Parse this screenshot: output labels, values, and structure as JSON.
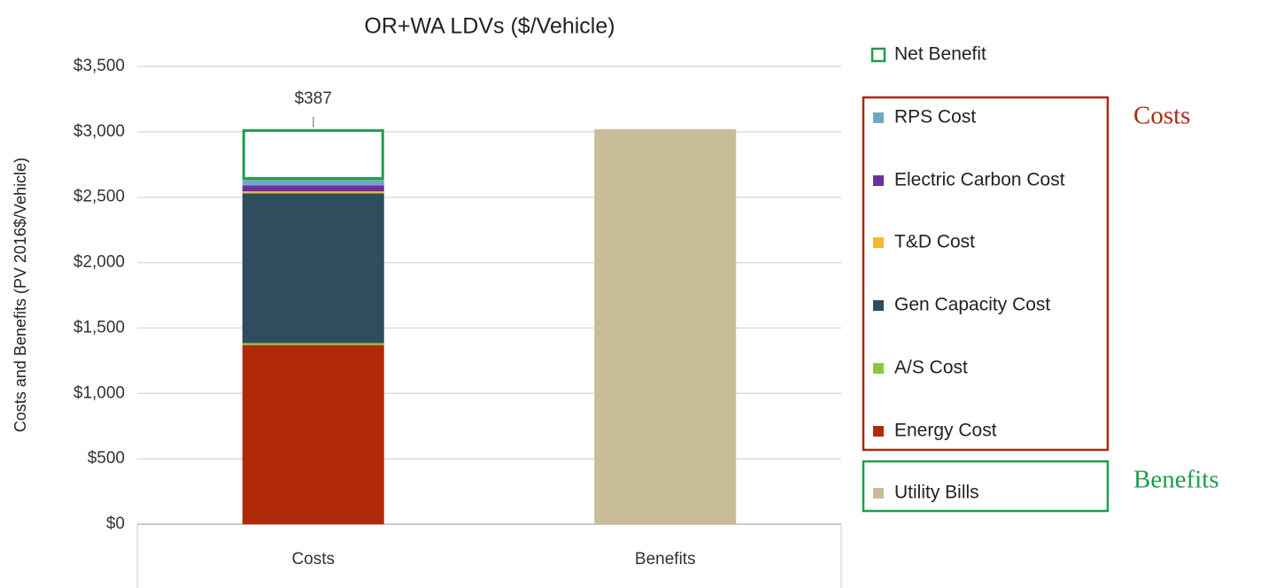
{
  "chart_data": {
    "type": "stacked-bar",
    "title": "OR+WA LDVs ($/Vehicle)",
    "y_label": "Costs and Benefits (PV 2016$/Vehicle)",
    "categories": [
      "Costs",
      "Benefits"
    ],
    "series": [
      {
        "name": "Energy Cost",
        "color": "#b02a0a",
        "values": [
          1370,
          null
        ]
      },
      {
        "name": "A/S Cost",
        "color": "#8cc63f",
        "values": [
          15,
          null
        ]
      },
      {
        "name": "Gen Capacity Cost",
        "color": "#2e4d5e",
        "values": [
          1145,
          null
        ]
      },
      {
        "name": "T&D Cost",
        "color": "#f5b82e",
        "values": [
          15,
          null
        ]
      },
      {
        "name": "Electric Carbon Cost",
        "color": "#6a2fa0",
        "values": [
          45,
          null
        ]
      },
      {
        "name": "RPS Cost",
        "color": "#6fa8c0",
        "values": [
          43,
          null
        ]
      },
      {
        "name": "Net Benefit",
        "color": "#1e9e4a",
        "style": "outline",
        "values": [
          387,
          null
        ],
        "value_labels": [
          "$387",
          null
        ]
      },
      {
        "name": "Utility Bills",
        "color": "#c9bd98",
        "values": [
          null,
          3020
        ]
      }
    ],
    "annotations": [
      {
        "text": "Costs",
        "color": "#b02a14"
      },
      {
        "text": "Benefits",
        "color": "#1e9e4a"
      }
    ],
    "ylim": [
      0,
      3500
    ],
    "yticks": [
      {
        "value": 0,
        "label": "$0"
      },
      {
        "value": 500,
        "label": "$500"
      },
      {
        "value": 1000,
        "label": "$1,000"
      },
      {
        "value": 1500,
        "label": "$1,500"
      },
      {
        "value": 2000,
        "label": "$2,000"
      },
      {
        "value": 2500,
        "label": "$2,500"
      },
      {
        "value": 3000,
        "label": "$3,000"
      },
      {
        "value": 3500,
        "label": "$3,500"
      }
    ],
    "grid": true,
    "legend": "right"
  }
}
